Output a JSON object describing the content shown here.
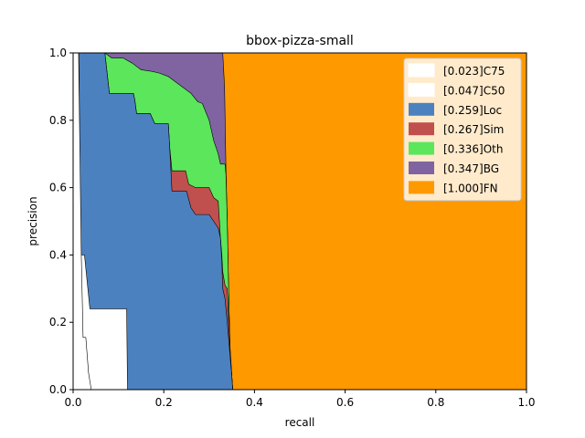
{
  "chart_data": {
    "type": "area",
    "title": "bbox-pizza-small",
    "xlabel": "recall",
    "ylabel": "precision",
    "xlim": [
      0,
      1
    ],
    "ylim": [
      0,
      1
    ],
    "xticks": [
      "0.0",
      "0.2",
      "0.4",
      "0.6",
      "0.8",
      "1.0"
    ],
    "yticks": [
      "0.0",
      "0.2",
      "0.4",
      "0.6",
      "0.8",
      "1.0"
    ],
    "grid": false,
    "legend_position": "top-right",
    "series": [
      {
        "name": "[0.023]C75",
        "color": "#ffffff",
        "points": [
          [
            0.0,
            1.0
          ],
          [
            0.012,
            1.0
          ],
          [
            0.018,
            0.4
          ],
          [
            0.022,
            0.155
          ],
          [
            0.028,
            0.155
          ],
          [
            0.034,
            0.05
          ],
          [
            0.04,
            0.0
          ]
        ]
      },
      {
        "name": "[0.047]C50",
        "color": "#ffffff",
        "points": [
          [
            0.0,
            1.0
          ],
          [
            0.013,
            1.0
          ],
          [
            0.016,
            0.4
          ],
          [
            0.025,
            0.4
          ],
          [
            0.037,
            0.24
          ],
          [
            0.11,
            0.24
          ],
          [
            0.118,
            0.24
          ],
          [
            0.12,
            0.0
          ]
        ]
      },
      {
        "name": "[0.259]Loc",
        "color": "#4c81bf",
        "points": [
          [
            0.0,
            1.0
          ],
          [
            0.017,
            1.0
          ],
          [
            0.07,
            1.0
          ],
          [
            0.08,
            0.88
          ],
          [
            0.133,
            0.88
          ],
          [
            0.136,
            0.86
          ],
          [
            0.14,
            0.82
          ],
          [
            0.17,
            0.82
          ],
          [
            0.18,
            0.79
          ],
          [
            0.21,
            0.79
          ],
          [
            0.213,
            0.72
          ],
          [
            0.218,
            0.59
          ],
          [
            0.25,
            0.59
          ],
          [
            0.26,
            0.54
          ],
          [
            0.27,
            0.52
          ],
          [
            0.3,
            0.52
          ],
          [
            0.31,
            0.5
          ],
          [
            0.32,
            0.48
          ],
          [
            0.325,
            0.45
          ],
          [
            0.328,
            0.38
          ],
          [
            0.33,
            0.3
          ],
          [
            0.335,
            0.27
          ],
          [
            0.34,
            0.2
          ],
          [
            0.345,
            0.12
          ],
          [
            0.35,
            0.04
          ],
          [
            0.352,
            0.0
          ]
        ]
      },
      {
        "name": "[0.267]Sim",
        "color": "#c0504d",
        "points": [
          [
            0.0,
            1.0
          ],
          [
            0.017,
            1.0
          ],
          [
            0.07,
            1.0
          ],
          [
            0.08,
            0.88
          ],
          [
            0.133,
            0.88
          ],
          [
            0.136,
            0.86
          ],
          [
            0.14,
            0.82
          ],
          [
            0.17,
            0.82
          ],
          [
            0.18,
            0.79
          ],
          [
            0.21,
            0.79
          ],
          [
            0.213,
            0.72
          ],
          [
            0.218,
            0.65
          ],
          [
            0.248,
            0.65
          ],
          [
            0.255,
            0.61
          ],
          [
            0.27,
            0.6
          ],
          [
            0.3,
            0.6
          ],
          [
            0.31,
            0.57
          ],
          [
            0.32,
            0.56
          ],
          [
            0.325,
            0.45
          ],
          [
            0.328,
            0.4
          ],
          [
            0.33,
            0.35
          ],
          [
            0.335,
            0.31
          ],
          [
            0.34,
            0.3
          ],
          [
            0.345,
            0.15
          ],
          [
            0.35,
            0.04
          ],
          [
            0.352,
            0.0
          ]
        ]
      },
      {
        "name": "[0.336]Oth",
        "color": "#5ce65c",
        "points": [
          [
            0.0,
            1.0
          ],
          [
            0.017,
            1.0
          ],
          [
            0.07,
            1.0
          ],
          [
            0.085,
            0.985
          ],
          [
            0.11,
            0.985
          ],
          [
            0.13,
            0.97
          ],
          [
            0.15,
            0.95
          ],
          [
            0.175,
            0.945
          ],
          [
            0.19,
            0.94
          ],
          [
            0.21,
            0.93
          ],
          [
            0.23,
            0.91
          ],
          [
            0.26,
            0.88
          ],
          [
            0.275,
            0.855
          ],
          [
            0.285,
            0.85
          ],
          [
            0.3,
            0.8
          ],
          [
            0.31,
            0.74
          ],
          [
            0.32,
            0.7
          ],
          [
            0.325,
            0.67
          ],
          [
            0.335,
            0.67
          ],
          [
            0.337,
            0.64
          ],
          [
            0.34,
            0.5
          ],
          [
            0.343,
            0.3
          ],
          [
            0.346,
            0.12
          ],
          [
            0.35,
            0.04
          ],
          [
            0.352,
            0.0
          ]
        ]
      },
      {
        "name": "[0.347]BG",
        "color": "#8064a2",
        "points": [
          [
            0.0,
            1.0
          ],
          [
            0.017,
            1.0
          ],
          [
            0.07,
            1.0
          ],
          [
            0.085,
            1.0
          ],
          [
            0.25,
            1.0
          ],
          [
            0.33,
            1.0
          ],
          [
            0.332,
            0.95
          ],
          [
            0.334,
            0.9
          ],
          [
            0.337,
            0.66
          ],
          [
            0.34,
            0.5
          ],
          [
            0.343,
            0.3
          ],
          [
            0.346,
            0.12
          ],
          [
            0.35,
            0.04
          ],
          [
            0.352,
            0.0
          ]
        ]
      },
      {
        "name": "[1.000]FN",
        "color": "#ff9900",
        "points": [
          [
            0.0,
            1.0
          ],
          [
            1.0,
            1.0
          ],
          [
            1.0,
            0.0
          ]
        ]
      }
    ]
  }
}
